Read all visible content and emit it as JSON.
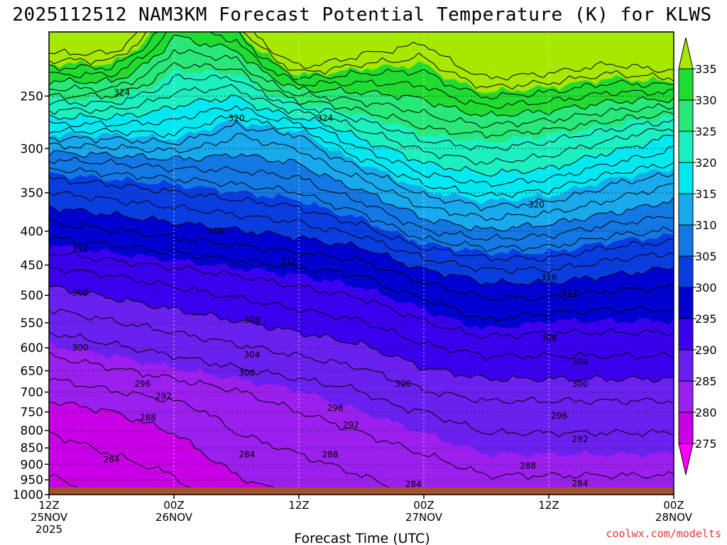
{
  "chart_data": {
    "type": "heatmap",
    "title": "2025112512 NAM3KM Forecast Potential Temperature (K) for KLWS",
    "xlabel": "Forecast Time (UTC)",
    "ylabel": "",
    "y_axis": {
      "scale": "log-pressure",
      "range": [
        1000,
        200
      ],
      "ticks": [
        250,
        300,
        350,
        400,
        450,
        500,
        550,
        600,
        650,
        700,
        750,
        800,
        850,
        900,
        950,
        1000
      ]
    },
    "x_axis": {
      "range_hours": [
        0,
        60
      ],
      "ticks": [
        {
          "hour": 0,
          "lines": [
            "12Z",
            "25NOV",
            "2025"
          ]
        },
        {
          "hour": 12,
          "lines": [
            "00Z",
            "26NOV"
          ]
        },
        {
          "hour": 24,
          "lines": [
            "12Z"
          ]
        },
        {
          "hour": 36,
          "lines": [
            "00Z",
            "27NOV"
          ]
        },
        {
          "hour": 48,
          "lines": [
            "12Z"
          ]
        },
        {
          "hour": 60,
          "lines": [
            "00Z",
            "28NOV"
          ]
        }
      ]
    },
    "grid": true,
    "ground_below_hpa": 975,
    "colorbar": {
      "levels": [
        275,
        280,
        285,
        290,
        295,
        300,
        305,
        310,
        315,
        320,
        325,
        330,
        335
      ],
      "colors": [
        "#ff00ff",
        "#c800e6",
        "#9b20ee",
        "#6a20ee",
        "#3a00ee",
        "#0000d0",
        "#0a3de0",
        "#1478e4",
        "#18aaec",
        "#00e8f0",
        "#1cf0c0",
        "#28e878",
        "#20dc30",
        "#a6e800"
      ]
    },
    "contour_labels": [
      {
        "value": "324",
        "hour": 7.0,
        "hpa": 247
      },
      {
        "value": "320",
        "hour": 18.0,
        "hpa": 270
      },
      {
        "value": "324",
        "hour": 26.5,
        "hpa": 270
      },
      {
        "value": "320",
        "hour": 46.8,
        "hpa": 365
      },
      {
        "value": "316",
        "hour": 16.0,
        "hpa": 400
      },
      {
        "value": "312",
        "hour": 3.0,
        "hpa": 425
      },
      {
        "value": "312",
        "hour": 23.0,
        "hpa": 445
      },
      {
        "value": "316",
        "hour": 48.0,
        "hpa": 470
      },
      {
        "value": "308",
        "hour": 3.0,
        "hpa": 495
      },
      {
        "value": "312",
        "hour": 50.0,
        "hpa": 495
      },
      {
        "value": "308",
        "hour": 19.5,
        "hpa": 545
      },
      {
        "value": "308",
        "hour": 48.0,
        "hpa": 580
      },
      {
        "value": "300",
        "hour": 3.0,
        "hpa": 600
      },
      {
        "value": "304",
        "hour": 19.5,
        "hpa": 615
      },
      {
        "value": "304",
        "hour": 51.0,
        "hpa": 630
      },
      {
        "value": "300",
        "hour": 19.0,
        "hpa": 655
      },
      {
        "value": "300",
        "hour": 34.0,
        "hpa": 680
      },
      {
        "value": "300",
        "hour": 51.0,
        "hpa": 680
      },
      {
        "value": "296",
        "hour": 9.0,
        "hpa": 680
      },
      {
        "value": "292",
        "hour": 11.0,
        "hpa": 710
      },
      {
        "value": "296",
        "hour": 27.5,
        "hpa": 740
      },
      {
        "value": "296",
        "hour": 49.0,
        "hpa": 760
      },
      {
        "value": "288",
        "hour": 9.5,
        "hpa": 765
      },
      {
        "value": "292",
        "hour": 29.0,
        "hpa": 785
      },
      {
        "value": "292",
        "hour": 51.0,
        "hpa": 825
      },
      {
        "value": "284",
        "hour": 6.0,
        "hpa": 885
      },
      {
        "value": "284",
        "hour": 19.0,
        "hpa": 870
      },
      {
        "value": "288",
        "hour": 27.0,
        "hpa": 870
      },
      {
        "value": "288",
        "hour": 46.0,
        "hpa": 905
      },
      {
        "value": "284",
        "hour": 35.0,
        "hpa": 965
      },
      {
        "value": "284",
        "hour": 51.0,
        "hpa": 962
      }
    ]
  },
  "credit": "coolwx.com/modelts"
}
